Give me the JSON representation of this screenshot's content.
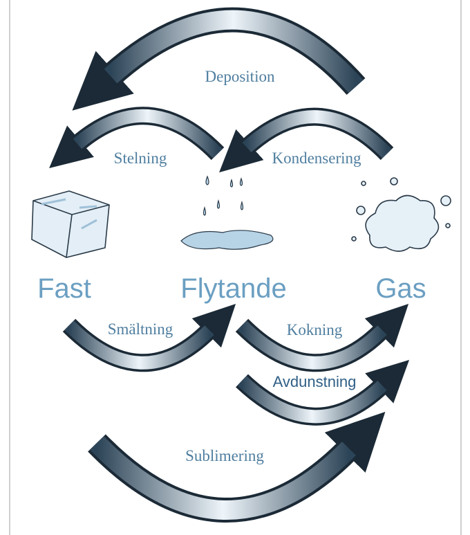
{
  "states": [
    {
      "label": "Fast"
    },
    {
      "label": "Flytande"
    },
    {
      "label": "Gas"
    }
  ],
  "transitions": [
    {
      "label": "Deposition"
    },
    {
      "label": "Stelning"
    },
    {
      "label": "Kondensering"
    },
    {
      "label": "Smältning"
    },
    {
      "label": "Kokning"
    },
    {
      "label": "Avdunstning"
    },
    {
      "label": "Sublimering"
    }
  ]
}
